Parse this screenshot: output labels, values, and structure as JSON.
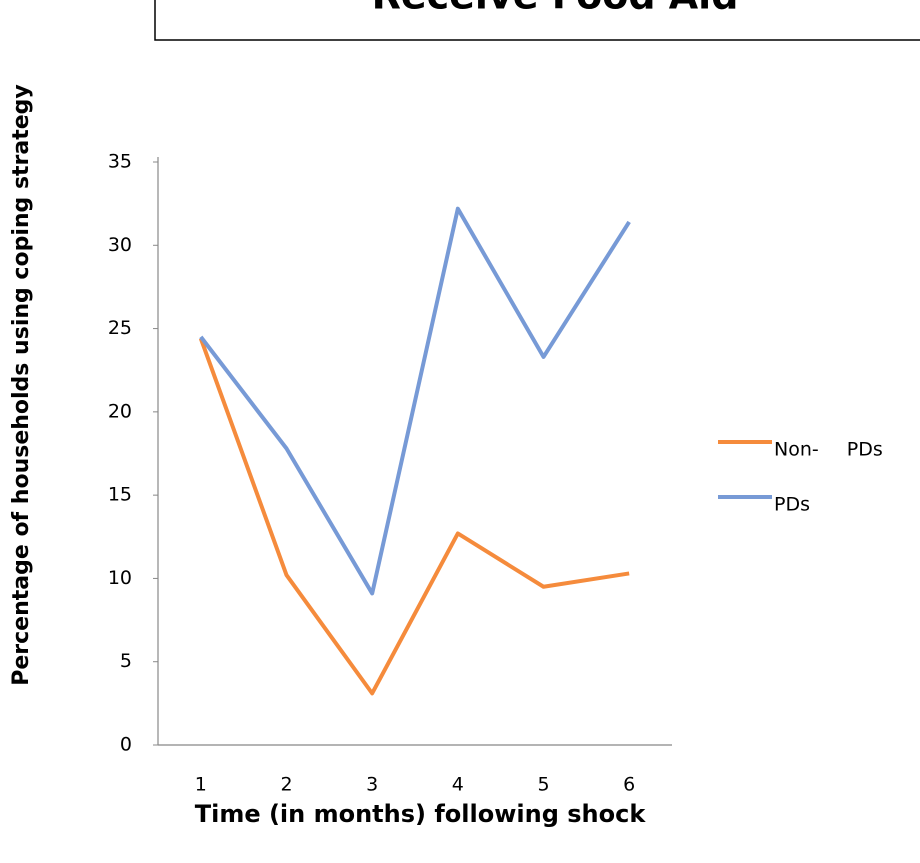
{
  "chart_data": {
    "type": "line",
    "title": "Receive Food Aid",
    "x_label": "Time (in months) following shock",
    "y_label": "Percentage of households using coping strategy",
    "categories": [
      "1",
      "2",
      "3",
      "4",
      "5",
      "6"
    ],
    "series": [
      {
        "name": "Non- PDs",
        "color": "#f58b3c",
        "values": [
          24.4,
          10.2,
          3.1,
          12.7,
          9.5,
          10.3
        ]
      },
      {
        "name": "PDs",
        "color": "#779ad6",
        "values": [
          24.5,
          17.8,
          9.1,
          32.2,
          23.3,
          31.4
        ]
      }
    ],
    "ylim": [
      0,
      35
    ],
    "yticks": [
      0,
      5,
      10,
      15,
      20,
      25,
      30,
      35
    ],
    "grid": false,
    "legend": "right"
  }
}
